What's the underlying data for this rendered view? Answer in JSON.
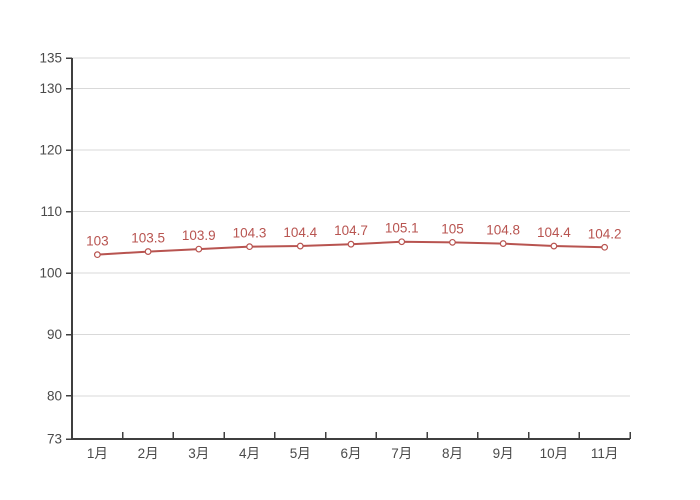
{
  "chart_data": {
    "type": "line",
    "categories": [
      "1月",
      "2月",
      "3月",
      "4月",
      "5月",
      "6月",
      "7月",
      "8月",
      "9月",
      "10月",
      "11月"
    ],
    "values": [
      103,
      103.5,
      103.9,
      104.3,
      104.4,
      104.7,
      105.1,
      105,
      104.8,
      104.4,
      104.2
    ],
    "data_labels": [
      "103",
      "103.5",
      "103.9",
      "104.3",
      "104.4",
      "104.7",
      "105.1",
      "105",
      "104.8",
      "104.4",
      "104.2"
    ],
    "title": "",
    "xlabel": "",
    "ylabel": "",
    "ylim": [
      73,
      135
    ],
    "yticks": [
      73,
      80,
      90,
      100,
      110,
      120,
      130,
      135
    ],
    "grid": true,
    "legend_position": "none",
    "marker": "open-circle",
    "colors": {
      "line": "#b85450",
      "marker_fill": "#ffffff",
      "data_label": "#b85450",
      "grid_line": "#d9d9d9",
      "axis_line": "#3f3f3f",
      "tick_label": "#4a4a4a",
      "background": "#ffffff"
    }
  }
}
